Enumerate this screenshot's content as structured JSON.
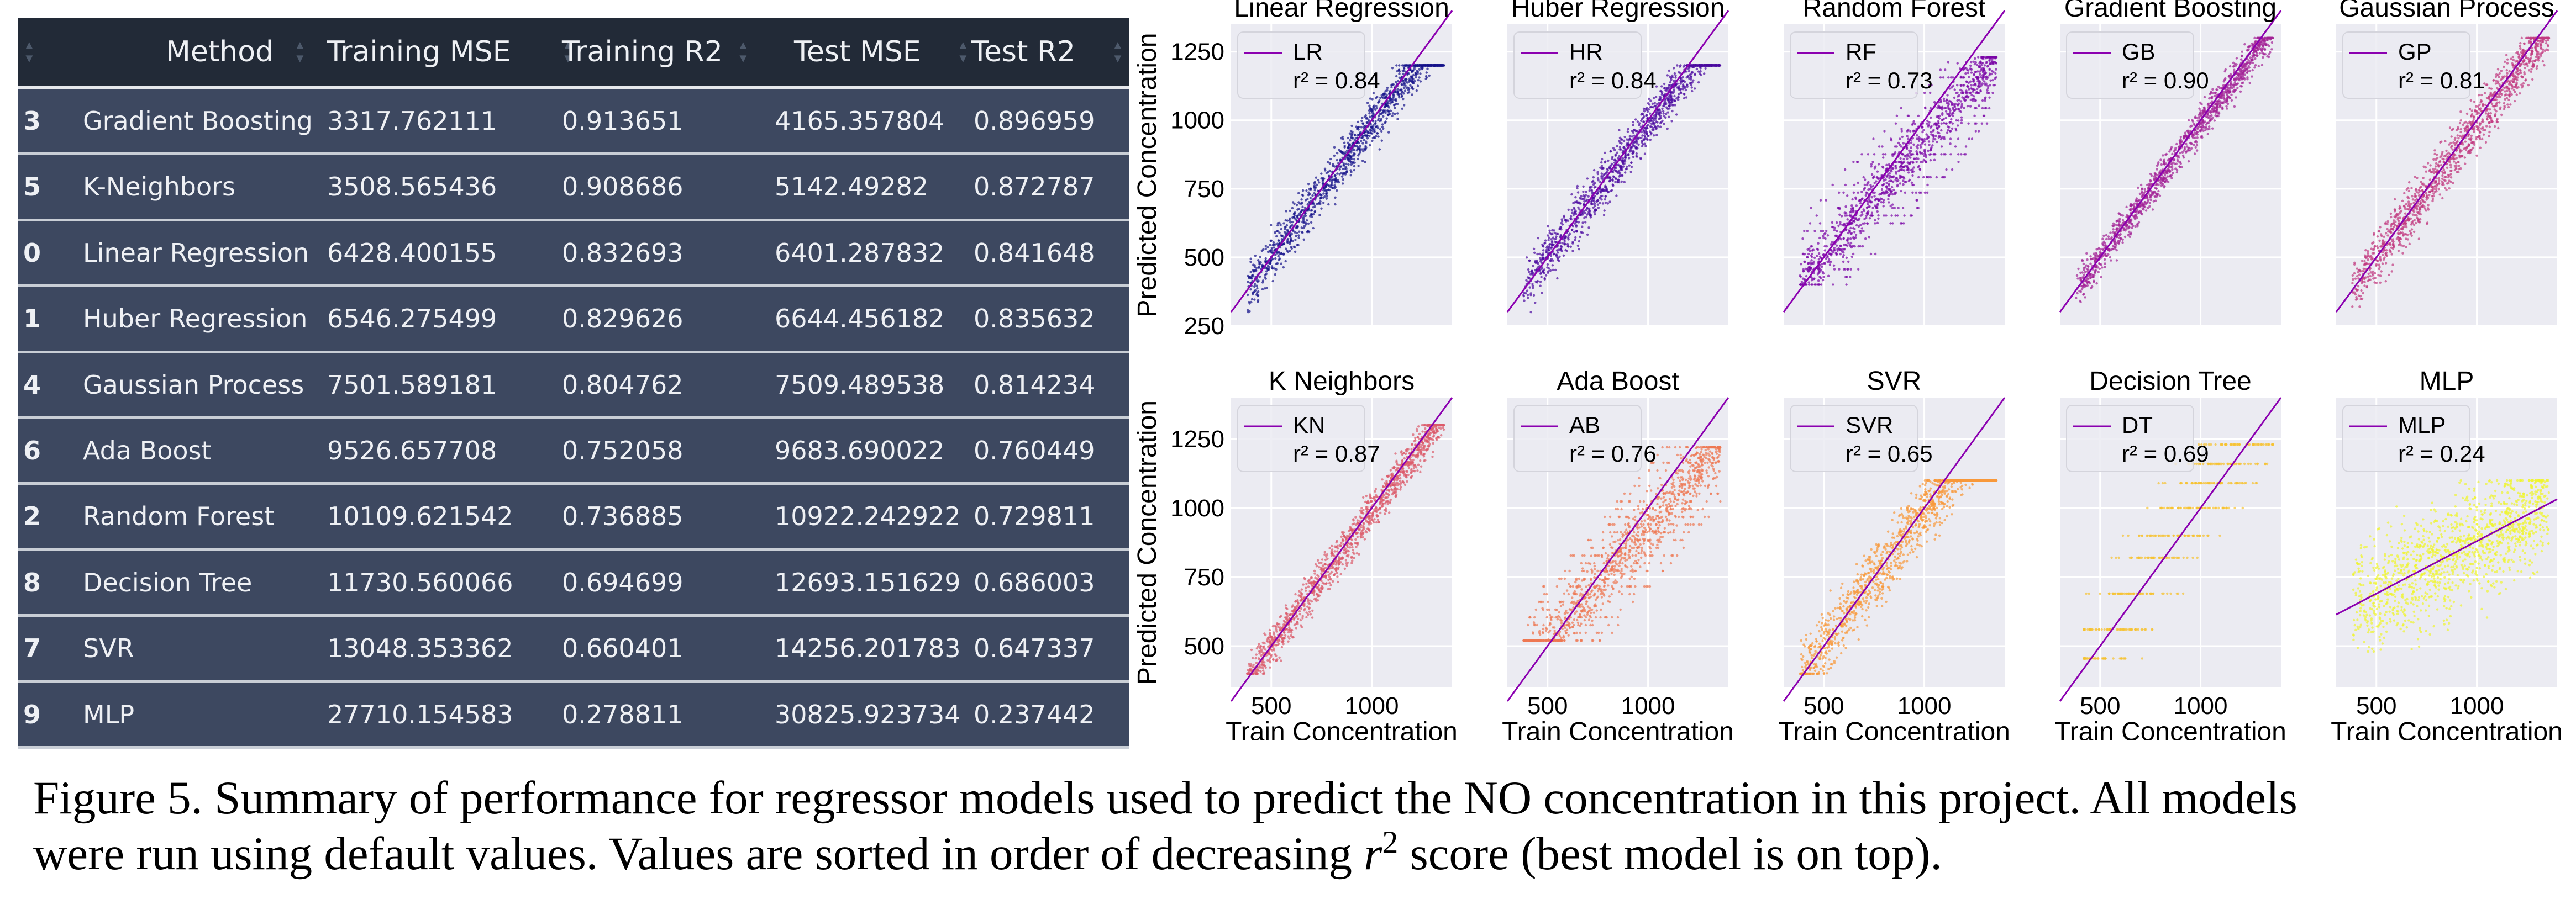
{
  "table": {
    "columns": [
      "",
      "Method",
      "Training MSE",
      "Training R2",
      "Test MSE",
      "Test R2"
    ],
    "rows": [
      {
        "idx": "3",
        "method": "Gradient Boosting",
        "train_mse": "3317.762111",
        "train_r2": "0.913651",
        "test_mse": "4165.357804",
        "test_r2": "0.896959"
      },
      {
        "idx": "5",
        "method": "K-Neighbors",
        "train_mse": "3508.565436",
        "train_r2": "0.908686",
        "test_mse": "5142.49282",
        "test_r2": "0.872787"
      },
      {
        "idx": "0",
        "method": "Linear Regression",
        "train_mse": "6428.400155",
        "train_r2": "0.832693",
        "test_mse": "6401.287832",
        "test_r2": "0.841648"
      },
      {
        "idx": "1",
        "method": "Huber Regression",
        "train_mse": "6546.275499",
        "train_r2": "0.829626",
        "test_mse": "6644.456182",
        "test_r2": "0.835632"
      },
      {
        "idx": "4",
        "method": "Gaussian Process",
        "train_mse": "7501.589181",
        "train_r2": "0.804762",
        "test_mse": "7509.489538",
        "test_r2": "0.814234"
      },
      {
        "idx": "6",
        "method": "Ada Boost",
        "train_mse": "9526.657708",
        "train_r2": "0.752058",
        "test_mse": "9683.690022",
        "test_r2": "0.760449"
      },
      {
        "idx": "2",
        "method": "Random Forest",
        "train_mse": "10109.621542",
        "train_r2": "0.736885",
        "test_mse": "10922.242922",
        "test_r2": "0.729811"
      },
      {
        "idx": "8",
        "method": "Decision Tree",
        "train_mse": "11730.560066",
        "train_r2": "0.694699",
        "test_mse": "12693.151629",
        "test_r2": "0.686003"
      },
      {
        "idx": "7",
        "method": "SVR",
        "train_mse": "13048.353362",
        "train_r2": "0.660401",
        "test_mse": "14256.201783",
        "test_r2": "0.647337"
      },
      {
        "idx": "9",
        "method": "MLP",
        "train_mse": "27710.154583",
        "train_r2": "0.278811",
        "test_mse": "30825.923734",
        "test_r2": "0.237442"
      }
    ]
  },
  "chart_data": [
    {
      "type": "scatter",
      "title": "Linear Regression",
      "legend": "LR",
      "r2": "r² = 0.84",
      "color": "#16128a",
      "ylabel": "Predicted Concentration",
      "xlabel": "",
      "xlim": [
        300,
        1400
      ],
      "ylim": [
        250,
        1350
      ],
      "yticks": [
        250,
        500,
        750,
        1000,
        1250
      ],
      "xticks": [],
      "pattern": "linear",
      "y_range": [
        300,
        1200
      ],
      "spread": 60
    },
    {
      "type": "scatter",
      "title": "Huber Regression",
      "legend": "HR",
      "r2": "r² = 0.84",
      "color": "#4a08a0",
      "ylabel": "",
      "xlabel": "",
      "xlim": [
        300,
        1400
      ],
      "ylim": [
        250,
        1350
      ],
      "yticks": [],
      "xticks": [],
      "pattern": "linear",
      "y_range": [
        300,
        1200
      ],
      "spread": 60
    },
    {
      "type": "scatter",
      "title": "Random Forest",
      "legend": "RF",
      "r2": "r² = 0.73",
      "color": "#7a06a6",
      "ylabel": "",
      "xlabel": "",
      "xlim": [
        300,
        1400
      ],
      "ylim": [
        250,
        1350
      ],
      "yticks": [],
      "xticks": [],
      "pattern": "steps",
      "y_range": [
        400,
        1230
      ],
      "spread": 70
    },
    {
      "type": "scatter",
      "title": "Gradient Boosting",
      "legend": "GB",
      "r2": "r² = 0.90",
      "color": "#a32295",
      "ylabel": "",
      "xlabel": "",
      "xlim": [
        300,
        1400
      ],
      "ylim": [
        250,
        1350
      ],
      "yticks": [],
      "xticks": [],
      "pattern": "linear",
      "y_range": [
        320,
        1300
      ],
      "spread": 45
    },
    {
      "type": "scatter",
      "title": "Gaussian Process",
      "legend": "GP",
      "r2": "r² = 0.81",
      "color": "#c23a80",
      "ylabel": "",
      "xlabel": "",
      "xlim": [
        300,
        1400
      ],
      "ylim": [
        250,
        1350
      ],
      "yticks": [],
      "xticks": [],
      "pattern": "linear",
      "y_range": [
        320,
        1300
      ],
      "spread": 65
    },
    {
      "type": "scatter",
      "title": "K Neighbors",
      "legend": "KN",
      "r2": "r² = 0.87",
      "color": "#dc5a6a",
      "ylabel": "Predicted Concentration",
      "xlabel": "Train Concentration",
      "xlim": [
        300,
        1400
      ],
      "ylim": [
        350,
        1400
      ],
      "yticks": [
        500,
        750,
        1000,
        1250
      ],
      "xticks": [
        500,
        1000
      ],
      "pattern": "linear",
      "y_range": [
        400,
        1300
      ],
      "spread": 50
    },
    {
      "type": "scatter",
      "title": "Ada Boost",
      "legend": "AB",
      "r2": "r² = 0.76",
      "color": "#ee7853",
      "ylabel": "",
      "xlabel": "Train Concentration",
      "xlim": [
        300,
        1400
      ],
      "ylim": [
        350,
        1400
      ],
      "yticks": [],
      "xticks": [
        500,
        1000
      ],
      "pattern": "steps",
      "y_range": [
        520,
        1220
      ],
      "spread": 75
    },
    {
      "type": "scatter",
      "title": "SVR",
      "legend": "SVR",
      "r2": "r² = 0.65",
      "color": "#f8993a",
      "ylabel": "",
      "xlabel": "Train Concentration",
      "xlim": [
        300,
        1400
      ],
      "ylim": [
        350,
        1400
      ],
      "yticks": [],
      "xticks": [
        500,
        1000
      ],
      "pattern": "linear",
      "y_range": [
        400,
        1100
      ],
      "spread": 80
    },
    {
      "type": "scatter",
      "title": "Decision Tree",
      "legend": "DT",
      "r2": "r² = 0.69",
      "color": "#f7c22f",
      "ylabel": "",
      "xlabel": "Train Concentration",
      "xlim": [
        300,
        1400
      ],
      "ylim": [
        350,
        1400
      ],
      "yticks": [],
      "xticks": [
        500,
        1000
      ],
      "pattern": "sparse_steps",
      "y_range": [
        450,
        1250
      ],
      "spread": 40
    },
    {
      "type": "scatter",
      "title": "MLP",
      "legend": "MLP",
      "r2": "r² = 0.24",
      "color": "#eff52e",
      "ylabel": "",
      "xlabel": "Train Concentration",
      "xlim": [
        300,
        1400
      ],
      "ylim": [
        350,
        1400
      ],
      "yticks": [],
      "xticks": [
        500,
        1000
      ],
      "pattern": "flat",
      "y_range": [
        480,
        1100
      ],
      "spread": 140
    }
  ],
  "caption": {
    "text1": "Figure 5. Summary of performance for regressor models used  to predict the NO concentration in this project. All models",
    "text2": "were run using default values.  Values are sorted in order of decreasing ",
    "r2_symbol": "r",
    "r2_exp": "2",
    "text3": " score (best model is on top)."
  },
  "colors": {
    "table_bg": "#2b3545",
    "table_header_bg": "#222a37",
    "row_bg": "#3d4860",
    "plot_bg": "#ebebf2",
    "fit_line": "#8b00b0"
  }
}
